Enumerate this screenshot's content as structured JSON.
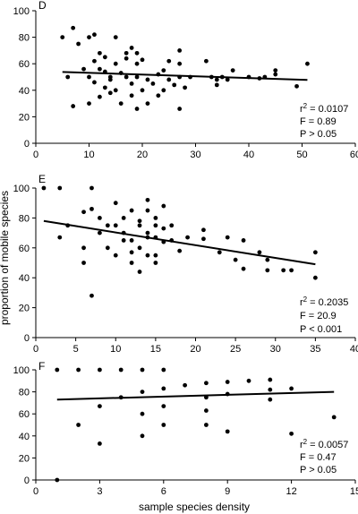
{
  "chart_data": [
    {
      "type": "scatter",
      "panel": "D",
      "xlim": [
        0,
        60
      ],
      "ylim": [
        0,
        100
      ],
      "x_ticks": [
        0,
        10,
        20,
        30,
        40,
        50,
        60
      ],
      "y_ticks": [
        0,
        20,
        40,
        60,
        80,
        100
      ],
      "x_tick_labels": [
        "0",
        "10",
        "20",
        "30",
        "40",
        "50",
        "60"
      ],
      "y_tick_labels": [
        "0",
        "20",
        "40",
        "60",
        "80",
        "100"
      ],
      "points": [
        [
          5,
          80
        ],
        [
          6,
          50
        ],
        [
          7,
          87
        ],
        [
          7,
          28
        ],
        [
          8,
          75
        ],
        [
          9,
          56
        ],
        [
          10,
          80
        ],
        [
          10,
          30
        ],
        [
          10,
          50
        ],
        [
          11,
          82
        ],
        [
          11,
          62
        ],
        [
          11,
          46
        ],
        [
          12,
          56
        ],
        [
          12,
          35
        ],
        [
          12,
          68
        ],
        [
          13,
          65
        ],
        [
          13,
          42
        ],
        [
          13,
          54
        ],
        [
          14,
          50
        ],
        [
          14,
          38
        ],
        [
          14,
          48
        ],
        [
          15,
          80
        ],
        [
          15,
          60
        ],
        [
          15,
          40
        ],
        [
          16,
          53
        ],
        [
          16,
          30
        ],
        [
          17,
          68
        ],
        [
          17,
          50
        ],
        [
          17,
          64
        ],
        [
          18,
          72
        ],
        [
          18,
          45
        ],
        [
          18,
          36
        ],
        [
          19,
          60
        ],
        [
          19,
          68
        ],
        [
          19,
          26
        ],
        [
          19,
          50
        ],
        [
          20,
          63
        ],
        [
          20,
          40
        ],
        [
          21,
          48
        ],
        [
          21,
          30
        ],
        [
          22,
          45
        ],
        [
          23,
          52
        ],
        [
          23,
          36
        ],
        [
          24,
          55
        ],
        [
          24,
          40
        ],
        [
          25,
          62
        ],
        [
          25,
          48
        ],
        [
          26,
          44
        ],
        [
          27,
          70
        ],
        [
          27,
          50
        ],
        [
          27,
          26
        ],
        [
          27,
          60
        ],
        [
          28,
          42
        ],
        [
          29,
          50
        ],
        [
          32,
          62
        ],
        [
          33,
          50
        ],
        [
          34,
          48
        ],
        [
          34,
          44
        ],
        [
          35,
          50
        ],
        [
          36,
          48
        ],
        [
          37,
          55
        ],
        [
          40,
          50
        ],
        [
          42,
          49
        ],
        [
          43,
          50
        ],
        [
          45,
          55
        ],
        [
          45,
          52
        ],
        [
          49,
          43
        ],
        [
          51,
          60
        ]
      ],
      "trend": [
        [
          5,
          53.8
        ],
        [
          51,
          47.8
        ]
      ],
      "stats": [
        "r 2 = 0.0107",
        "F = 0.89",
        "P > 0.05"
      ]
    },
    {
      "type": "scatter",
      "panel": "E",
      "xlim": [
        0,
        40
      ],
      "ylim": [
        0,
        100
      ],
      "x_ticks": [
        0,
        5,
        10,
        15,
        20,
        25,
        30,
        35,
        40
      ],
      "y_ticks": [
        0,
        20,
        40,
        60,
        80,
        100
      ],
      "x_tick_labels": [
        "0",
        "5",
        "10",
        "15",
        "20",
        "25",
        "30",
        "35",
        "40"
      ],
      "y_tick_labels": [
        "0",
        "20",
        "40",
        "60",
        "80",
        "100"
      ],
      "points": [
        [
          1,
          100
        ],
        [
          3,
          100
        ],
        [
          3,
          67
        ],
        [
          4,
          75
        ],
        [
          6,
          84
        ],
        [
          6,
          60
        ],
        [
          6,
          50
        ],
        [
          7,
          100
        ],
        [
          7,
          86
        ],
        [
          7,
          28
        ],
        [
          8,
          70
        ],
        [
          8,
          80
        ],
        [
          9,
          60
        ],
        [
          9,
          75
        ],
        [
          10,
          90
        ],
        [
          10,
          75
        ],
        [
          10,
          55
        ],
        [
          11,
          70
        ],
        [
          11,
          80
        ],
        [
          11,
          65
        ],
        [
          12,
          85
        ],
        [
          12,
          65
        ],
        [
          12,
          57
        ],
        [
          12,
          50
        ],
        [
          13,
          78
        ],
        [
          13,
          75
        ],
        [
          13,
          60
        ],
        [
          13,
          44
        ],
        [
          14,
          92
        ],
        [
          14,
          85
        ],
        [
          14,
          70
        ],
        [
          14,
          67
        ],
        [
          14,
          55
        ],
        [
          15,
          80
        ],
        [
          15,
          75
        ],
        [
          15,
          67
        ],
        [
          15,
          55
        ],
        [
          15,
          50
        ],
        [
          16,
          88
        ],
        [
          16,
          73
        ],
        [
          16,
          64
        ],
        [
          17,
          75
        ],
        [
          17,
          65
        ],
        [
          18,
          58
        ],
        [
          19,
          67
        ],
        [
          21,
          72
        ],
        [
          21,
          66
        ],
        [
          23,
          57
        ],
        [
          24,
          67
        ],
        [
          25,
          52
        ],
        [
          26,
          65
        ],
        [
          26,
          46
        ],
        [
          28,
          57
        ],
        [
          29,
          45
        ],
        [
          29,
          52
        ],
        [
          31,
          45
        ],
        [
          32,
          45
        ],
        [
          35,
          57
        ],
        [
          35,
          40
        ]
      ],
      "trend": [
        [
          1,
          78
        ],
        [
          35,
          49
        ]
      ],
      "stats": [
        "r 2 = 0.2035",
        "F = 20.9",
        "P < 0.001"
      ]
    },
    {
      "type": "scatter",
      "panel": "F",
      "xlim": [
        0,
        15
      ],
      "ylim": [
        0,
        100
      ],
      "x_ticks": [
        0,
        3,
        6,
        9,
        12,
        15
      ],
      "y_ticks": [
        0,
        20,
        40,
        60,
        80,
        100
      ],
      "x_tick_labels": [
        "0",
        "3",
        "6",
        "9",
        "12",
        "15"
      ],
      "y_tick_labels": [
        "0",
        "20",
        "40",
        "60",
        "80",
        "100"
      ],
      "points": [
        [
          1,
          100
        ],
        [
          1,
          0
        ],
        [
          2,
          100
        ],
        [
          2,
          50
        ],
        [
          3,
          100
        ],
        [
          3,
          67
        ],
        [
          3,
          33
        ],
        [
          4,
          100
        ],
        [
          4,
          75
        ],
        [
          5,
          100
        ],
        [
          5,
          80
        ],
        [
          5,
          60
        ],
        [
          5,
          40
        ],
        [
          6,
          100
        ],
        [
          6,
          83
        ],
        [
          6,
          67
        ],
        [
          6,
          50
        ],
        [
          7,
          86
        ],
        [
          8,
          88
        ],
        [
          8,
          75
        ],
        [
          8,
          63
        ],
        [
          8,
          50
        ],
        [
          9,
          89
        ],
        [
          9,
          78
        ],
        [
          9,
          44
        ],
        [
          10,
          90
        ],
        [
          11,
          91
        ],
        [
          11,
          82
        ],
        [
          11,
          73
        ],
        [
          12,
          83
        ],
        [
          12,
          42
        ],
        [
          14,
          57
        ]
      ],
      "trend": [
        [
          1,
          73
        ],
        [
          14,
          80
        ]
      ],
      "stats": [
        "r 2 = 0.0057",
        "F = 0.47",
        "P > 0.05"
      ]
    }
  ],
  "axis_titles": {
    "y": "proportion of mobile species",
    "x": "sample species density"
  }
}
